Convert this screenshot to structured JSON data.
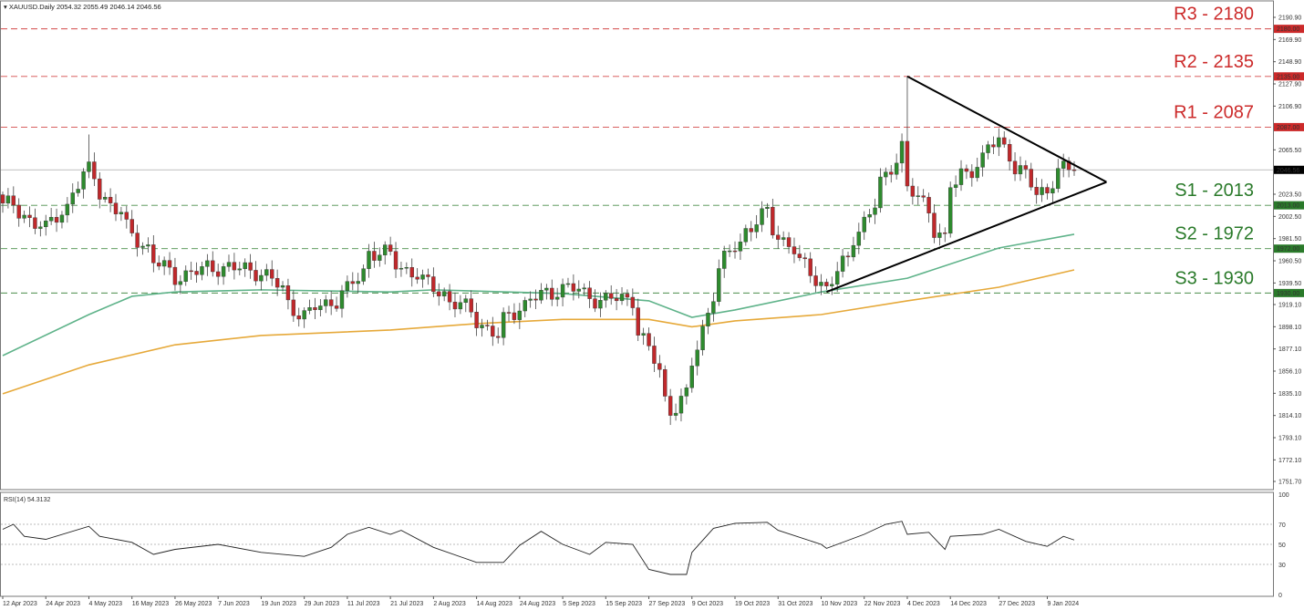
{
  "header": {
    "symbol": "XAUUSD.Daily",
    "ohlc": "2054.32 2055.49 2046.14 2046.56",
    "dropdown_icon": "triangle-down-icon"
  },
  "chart_data": {
    "type": "candlestick",
    "symbol": "XAUUSD.Daily",
    "y_axis": {
      "range": [
        1751.7,
        2190.9
      ],
      "ticks": [
        "2190.90",
        "2169.90",
        "2148.90",
        "2127.90",
        "2106.90",
        "2065.50",
        "2023.50",
        "2002.50",
        "1981.50",
        "1960.50",
        "1939.50",
        "1919.10",
        "1898.10",
        "1877.10",
        "1856.10",
        "1835.10",
        "1814.10",
        "1793.10",
        "1772.10",
        "1751.70"
      ]
    },
    "x_ticks": [
      "12 Apr 2023",
      "24 Apr 2023",
      "4 May 2023",
      "16 May 2023",
      "26 May 2023",
      "7 Jun 2023",
      "19 Jun 2023",
      "29 Jun 2023",
      "11 Jul 2023",
      "21 Jul 2023",
      "2 Aug 2023",
      "14 Aug 2023",
      "24 Aug 2023",
      "5 Sep 2023",
      "15 Sep 2023",
      "27 Sep 2023",
      "9 Oct 2023",
      "19 Oct 2023",
      "31 Oct 2023",
      "10 Nov 2023",
      "22 Nov 2023",
      "4 Dec 2023",
      "14 Dec 2023",
      "27 Dec 2023",
      "9 Jan 2024"
    ],
    "x_tick_dates": [
      "2023-04-12",
      "2023-04-24",
      "2023-05-04",
      "2023-05-16",
      "2023-05-26",
      "2023-06-07",
      "2023-06-19",
      "2023-06-29",
      "2023-07-11",
      "2023-07-21",
      "2023-08-02",
      "2023-08-14",
      "2023-08-24",
      "2023-09-05",
      "2023-09-15",
      "2023-09-27",
      "2023-10-09",
      "2023-10-19",
      "2023-10-31",
      "2023-11-10",
      "2023-11-22",
      "2023-12-04",
      "2023-12-14",
      "2023-12-27",
      "2024-01-09"
    ],
    "closes_approx": [
      [
        "2023-04-12",
        2015
      ],
      [
        "2023-04-24",
        1990
      ],
      [
        "2023-05-04",
        2045
      ],
      [
        "2023-05-16",
        1985
      ],
      [
        "2023-05-26",
        1945
      ],
      [
        "2023-06-07",
        1955
      ],
      [
        "2023-06-19",
        1950
      ],
      [
        "2023-06-29",
        1908
      ],
      [
        "2023-07-11",
        1932
      ],
      [
        "2023-07-17",
        1970
      ],
      [
        "2023-07-21",
        1965
      ],
      [
        "2023-08-02",
        1935
      ],
      [
        "2023-08-14",
        1905
      ],
      [
        "2023-08-18",
        1888
      ],
      [
        "2023-08-24",
        1918
      ],
      [
        "2023-09-05",
        1936
      ],
      [
        "2023-09-15",
        1923
      ],
      [
        "2023-09-22",
        1925
      ],
      [
        "2023-09-27",
        1875
      ],
      [
        "2023-10-03",
        1820
      ],
      [
        "2023-10-06",
        1832
      ],
      [
        "2023-10-09",
        1862
      ],
      [
        "2023-10-13",
        1930
      ],
      [
        "2023-10-19",
        1975
      ],
      [
        "2023-10-27",
        2005
      ],
      [
        "2023-10-31",
        1985
      ],
      [
        "2023-11-10",
        1940
      ],
      [
        "2023-11-13",
        1935
      ],
      [
        "2023-11-22",
        1998
      ],
      [
        "2023-11-28",
        2040
      ],
      [
        "2023-12-01",
        2070
      ],
      [
        "2023-12-04",
        2028
      ],
      [
        "2023-12-08",
        2010
      ],
      [
        "2023-12-13",
        1980
      ],
      [
        "2023-12-14",
        2030
      ],
      [
        "2023-12-22",
        2055
      ],
      [
        "2023-12-27",
        2075
      ],
      [
        "2023-12-29",
        2062
      ],
      [
        "2024-01-03",
        2040
      ],
      [
        "2024-01-05",
        2025
      ],
      [
        "2024-01-09",
        2028
      ],
      [
        "2024-01-11",
        2045
      ],
      [
        "2024-01-16",
        2046.56
      ]
    ],
    "notable_highs": [
      [
        "2023-05-04",
        2080
      ],
      [
        "2023-12-04",
        2135
      ]
    ],
    "last_price": 2046.56,
    "moving_averages": [
      {
        "color": "#5fb38a",
        "points": [
          [
            "2023-04-12",
            1870.8
          ],
          [
            "2023-05-04",
            1909.6
          ],
          [
            "2023-05-16",
            1926.9
          ],
          [
            "2023-05-26",
            1931
          ],
          [
            "2023-06-19",
            1933
          ],
          [
            "2023-07-21",
            1931
          ],
          [
            "2023-08-02",
            1933
          ],
          [
            "2023-09-05",
            1929.5
          ],
          [
            "2023-09-27",
            1922.6
          ],
          [
            "2023-10-09",
            1907
          ],
          [
            "2023-10-19",
            1914
          ],
          [
            "2023-11-10",
            1931
          ],
          [
            "2023-12-04",
            1944
          ],
          [
            "2023-12-27",
            1972.6
          ],
          [
            "2024-01-16",
            1985.6
          ]
        ]
      },
      {
        "color": "#e6a93a",
        "points": [
          [
            "2023-04-12",
            1834.6
          ],
          [
            "2023-05-04",
            1862
          ],
          [
            "2023-05-26",
            1881
          ],
          [
            "2023-06-19",
            1889.8
          ],
          [
            "2023-07-21",
            1895
          ],
          [
            "2023-08-14",
            1901
          ],
          [
            "2023-09-05",
            1905
          ],
          [
            "2023-09-27",
            1905
          ],
          [
            "2023-10-09",
            1898
          ],
          [
            "2023-10-19",
            1903.6
          ],
          [
            "2023-11-10",
            1909.6
          ],
          [
            "2023-12-04",
            1922.6
          ],
          [
            "2023-12-27",
            1935.5
          ],
          [
            "2024-01-16",
            1951.9
          ]
        ]
      }
    ],
    "triangle": [
      [
        "2023-11-13",
        1931
      ],
      [
        "2023-12-04",
        2135
      ],
      [
        "2024-01-24",
        2035
      ]
    ],
    "levels": [
      {
        "label": "R3 - 2180",
        "price": 2180,
        "tag": "2180.00",
        "color": "#cc2a2a"
      },
      {
        "label": "R2 - 2135",
        "price": 2135,
        "tag": "2135.00",
        "color": "#cc2a2a"
      },
      {
        "label": "R1 - 2087",
        "price": 2087,
        "tag": "2087.00",
        "color": "#cc2a2a"
      },
      {
        "label": "S1 -  2013",
        "price": 2013,
        "tag": "2013.00",
        "color": "#2a7a2a"
      },
      {
        "label": "S2 - 1972",
        "price": 1972,
        "tag": "1972.00",
        "color": "#2a7a2a"
      },
      {
        "label": "S3 - 1930",
        "price": 1930,
        "tag": "1930.00",
        "color": "#2a7a2a"
      }
    ],
    "last_tag": "2046.56",
    "colors": {
      "bull": "#2e8b2e",
      "bear": "#c0282b"
    },
    "rsi": {
      "label": "RSI(14) 54.3132",
      "ylim": [
        0,
        100
      ],
      "ticks": [
        "100",
        "70",
        "50",
        "30",
        "0"
      ],
      "levels": [
        70,
        50,
        30
      ],
      "points": [
        [
          "2023-04-12",
          65
        ],
        [
          "2023-04-14",
          70
        ],
        [
          "2023-04-18",
          58
        ],
        [
          "2023-04-24",
          55
        ],
        [
          "2023-05-04",
          68
        ],
        [
          "2023-05-08",
          58
        ],
        [
          "2023-05-16",
          52
        ],
        [
          "2023-05-22",
          40
        ],
        [
          "2023-05-26",
          45
        ],
        [
          "2023-06-07",
          50
        ],
        [
          "2023-06-19",
          42
        ],
        [
          "2023-06-29",
          38
        ],
        [
          "2023-07-06",
          47
        ],
        [
          "2023-07-11",
          60
        ],
        [
          "2023-07-17",
          67
        ],
        [
          "2023-07-21",
          60
        ],
        [
          "2023-07-25",
          64
        ],
        [
          "2023-08-02",
          47
        ],
        [
          "2023-08-14",
          32
        ],
        [
          "2023-08-21",
          32
        ],
        [
          "2023-08-24",
          49
        ],
        [
          "2023-08-30",
          63
        ],
        [
          "2023-09-05",
          50
        ],
        [
          "2023-09-12",
          40
        ],
        [
          "2023-09-15",
          52
        ],
        [
          "2023-09-22",
          50
        ],
        [
          "2023-09-27",
          25
        ],
        [
          "2023-10-03",
          20
        ],
        [
          "2023-10-06",
          20
        ],
        [
          "2023-10-09",
          42
        ],
        [
          "2023-10-13",
          66
        ],
        [
          "2023-10-19",
          71
        ],
        [
          "2023-10-27",
          72
        ],
        [
          "2023-10-31",
          64
        ],
        [
          "2023-11-10",
          50
        ],
        [
          "2023-11-13",
          46
        ],
        [
          "2023-11-22",
          60
        ],
        [
          "2023-11-28",
          70
        ],
        [
          "2023-12-01",
          73
        ],
        [
          "2023-12-04",
          60
        ],
        [
          "2023-12-08",
          62
        ],
        [
          "2023-12-13",
          45
        ],
        [
          "2023-12-14",
          58
        ],
        [
          "2023-12-22",
          60
        ],
        [
          "2023-12-27",
          65
        ],
        [
          "2024-01-03",
          53
        ],
        [
          "2024-01-09",
          48
        ],
        [
          "2024-01-12",
          58
        ],
        [
          "2024-01-16",
          54.3132
        ]
      ]
    }
  }
}
